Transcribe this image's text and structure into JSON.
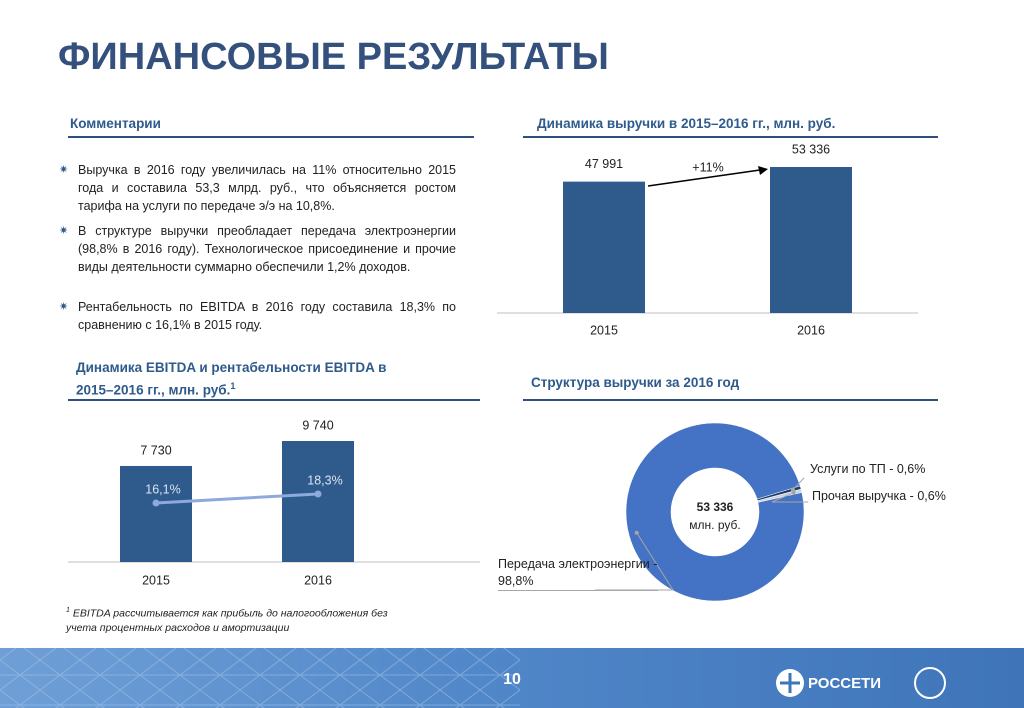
{
  "title": "ФИНАНСОВЫЕ РЕЗУЛЬТАТЫ",
  "comments": {
    "heading": "Комментарии",
    "items": [
      "Выручка в 2016 году увеличилась на 11% относительно 2015 года и составила 53,3 млрд. руб., что объясняется ростом тарифа на услуги по передаче э/э на 10,8%.",
      "В структуре выручки преобладает передача электроэнергии (98,8% в 2016 году). Технологическое присоединение и прочие виды деятельности суммарно обеспечили 1,2% доходов.",
      "Рентабельность по EBITDA в 2016 году составила 18,3% по сравнению с 16,1% в 2015 году."
    ]
  },
  "chart_data": [
    {
      "type": "bar",
      "title": "Динамика выручки в 2015–2016 гг., млн. руб.",
      "categories": [
        "2015",
        "2016"
      ],
      "values": [
        47991,
        53336
      ],
      "value_labels": [
        "47 991",
        "53 336"
      ],
      "color": "#2e5a8c",
      "annotation": "+11%"
    },
    {
      "type": "bar_line",
      "title": "Динамика EBITDA и рентабельности EBITDA в 2015–2016 гг., млн. руб.",
      "title_note": "1",
      "categories": [
        "2015",
        "2016"
      ],
      "series": [
        {
          "type": "bar",
          "color": "#2e5a8c",
          "values": [
            7730,
            9740
          ],
          "value_labels": [
            "7 730",
            "9 740"
          ]
        },
        {
          "type": "line",
          "color": "#8ea9db",
          "values": [
            16.1,
            18.3
          ],
          "value_labels": [
            "16,1%",
            "18,3%"
          ]
        }
      ]
    },
    {
      "type": "donut",
      "title": "Структура выручки за 2016 год",
      "center_value": "53 336",
      "center_unit": "млн. руб.",
      "categories": [
        "Передача электроэнергии - 98,8%",
        "Услуги по ТП - 0,6%",
        "Прочая выручка - 0,6%"
      ],
      "values": [
        98.8,
        0.6,
        0.6
      ],
      "colors": [
        "#4472c4",
        "#1f3b6e",
        "#c9d3e3"
      ]
    }
  ],
  "footnote": {
    "mark": "1",
    "text": "EBITDA рассчитывается как прибыль до налогообложения без учета процентных расходов и амортизации"
  },
  "page_number": "10",
  "logo": "РОССЕТИ"
}
